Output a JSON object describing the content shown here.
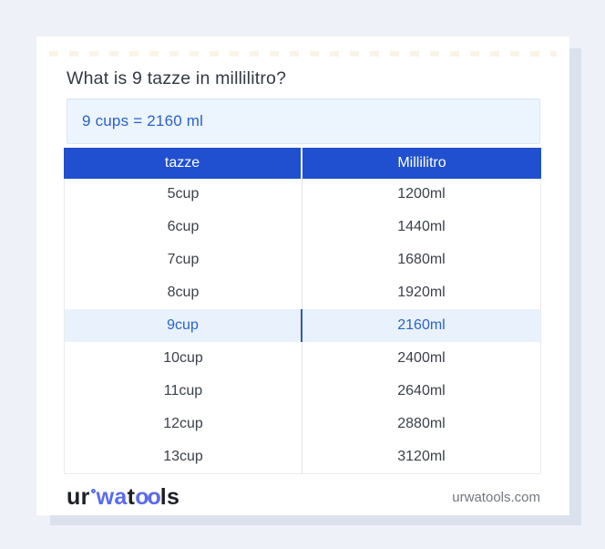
{
  "title": "What is 9 tazze in millilitro?",
  "answer": "9 cups = 2160 ml",
  "table": {
    "headers": [
      "tazze",
      "Millilitro"
    ],
    "rows": [
      {
        "tazze": "5cup",
        "ml": "1200ml",
        "highlight": false
      },
      {
        "tazze": "6cup",
        "ml": "1440ml",
        "highlight": false
      },
      {
        "tazze": "7cup",
        "ml": "1680ml",
        "highlight": false
      },
      {
        "tazze": "8cup",
        "ml": "1920ml",
        "highlight": false
      },
      {
        "tazze": "9cup",
        "ml": "2160ml",
        "highlight": true
      },
      {
        "tazze": "10cup",
        "ml": "2400ml",
        "highlight": false
      },
      {
        "tazze": "11cup",
        "ml": "2640ml",
        "highlight": false
      },
      {
        "tazze": "12cup",
        "ml": "2880ml",
        "highlight": false
      },
      {
        "tazze": "13cup",
        "ml": "3120ml",
        "highlight": false
      }
    ]
  },
  "footer": {
    "logo": {
      "ur": "ur",
      "wa": "wa",
      "t": "t",
      "oo": "oo",
      "ls": "ls"
    },
    "website": "urwatools.com"
  },
  "colors": {
    "page_bg": "#eef1f8",
    "card_bg": "#ffffff",
    "card_shadow": "#dce1ee",
    "header_blue": "#2050cf",
    "answer_box_bg": "#ecf4fd",
    "answer_text": "#2a61ca",
    "highlight_row_bg": "#e9f2fc",
    "highlight_text": "#2b63cb",
    "body_text": "#3b414b",
    "logo_blue": "#5a6bee",
    "url_gray": "#73777f"
  }
}
